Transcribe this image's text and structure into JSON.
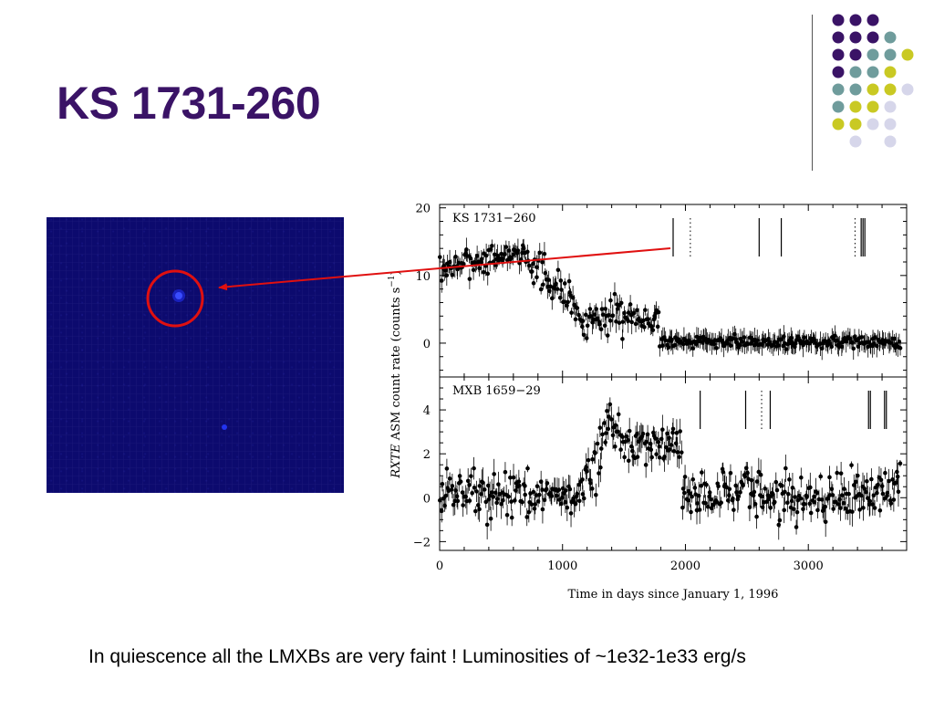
{
  "slide": {
    "title": "KS 1731-260",
    "caption": "In quiescence all the LMXBs are very faint ! Luminosities of ~1e32-1e33 erg/s"
  },
  "colors": {
    "title": "#3a1366",
    "purple": "#3a1366",
    "teal": "#6f9c9c",
    "yellow": "#c9c923",
    "lavender": "#d6d6ea",
    "circle": "#e01010",
    "arrow": "#e01010",
    "sky_background": "#0c0a6e",
    "source": "#2233ff"
  },
  "decoration": {
    "dot_rows": [
      [
        "purple",
        "purple",
        "purple",
        "",
        ""
      ],
      [
        "purple",
        "purple",
        "purple",
        "teal",
        ""
      ],
      [
        "purple",
        "purple",
        "teal",
        "teal",
        "yellow"
      ],
      [
        "purple",
        "teal",
        "teal",
        "yellow",
        ""
      ],
      [
        "teal",
        "teal",
        "yellow",
        "yellow",
        "lavender"
      ],
      [
        "teal",
        "yellow",
        "yellow",
        "lavender",
        ""
      ],
      [
        "yellow",
        "yellow",
        "lavender",
        "lavender",
        ""
      ],
      [
        "",
        "lavender",
        "",
        "lavender",
        ""
      ]
    ]
  },
  "chart_data": [
    {
      "type": "scatter",
      "label": "KS 1731−260",
      "xlabel": "Time in days since January 1, 1996",
      "ylabel": "RXTE ASM count rate (counts s⁻¹)",
      "ylabel_parts": {
        "italic": "RXTE",
        "rest": " ASM count rate (counts s",
        "sup": "−1",
        "close": ")"
      },
      "xlim": [
        0,
        3800
      ],
      "ylim": [
        -5,
        20.5
      ],
      "xticks": [
        0,
        1000,
        2000,
        3000
      ],
      "yticks": [
        0,
        10,
        20
      ],
      "grid": false,
      "error_bars": true,
      "marker_lines_solid": [
        1900,
        2600,
        2780,
        3430,
        3445,
        3460
      ],
      "marker_lines_dotted": [
        2040,
        3380
      ],
      "segments": [
        {
          "x": [
            0,
            700
          ],
          "y_start": 11.0,
          "y_end": 13.5,
          "scatter": 2.0
        },
        {
          "x": [
            700,
            1100
          ],
          "y_start": 12.5,
          "y_end": 6.0,
          "scatter": 3.0
        },
        {
          "x": [
            1100,
            1500
          ],
          "y_start": 4.0,
          "y_end": 4.0,
          "scatter": 3.0
        },
        {
          "x": [
            1500,
            1790
          ],
          "y_start": 4.5,
          "y_end": 3.0,
          "scatter": 2.5
        },
        {
          "x": [
            1790,
            3750
          ],
          "y_start": 0.3,
          "y_end": 0.1,
          "scatter": 1.0
        }
      ]
    },
    {
      "type": "scatter",
      "label": "MXB 1659−29",
      "xlabel": "Time in days since January 1, 1996",
      "xlim": [
        0,
        3800
      ],
      "ylim": [
        -2.4,
        5.5
      ],
      "xticks": [
        0,
        1000,
        2000,
        3000
      ],
      "xticklabels": [
        "0",
        "1000",
        "2000",
        "3000"
      ],
      "yticks": [
        -2,
        0,
        2,
        4
      ],
      "yticklabels": [
        "−2",
        "0",
        "2",
        "4"
      ],
      "grid": false,
      "error_bars": true,
      "marker_lines_solid": [
        2120,
        2490,
        2690,
        3490,
        3505,
        3620,
        3635
      ],
      "marker_lines_dotted": [
        2620
      ],
      "segments": [
        {
          "x": [
            0,
            1180
          ],
          "y_start": 0.2,
          "y_end": 0.2,
          "scatter": 1.2
        },
        {
          "x": [
            1180,
            1350
          ],
          "y_start": 1.5,
          "y_end": 2.0,
          "scatter": 1.5
        },
        {
          "x": [
            1350,
            1500
          ],
          "y_start": 3.5,
          "y_end": 2.5,
          "scatter": 1.2
        },
        {
          "x": [
            1500,
            1970
          ],
          "y_start": 2.4,
          "y_end": 2.3,
          "scatter": 1.0
        },
        {
          "x": [
            1970,
            3750
          ],
          "y_start": 0.1,
          "y_end": 0.2,
          "scatter": 1.3
        }
      ]
    }
  ]
}
